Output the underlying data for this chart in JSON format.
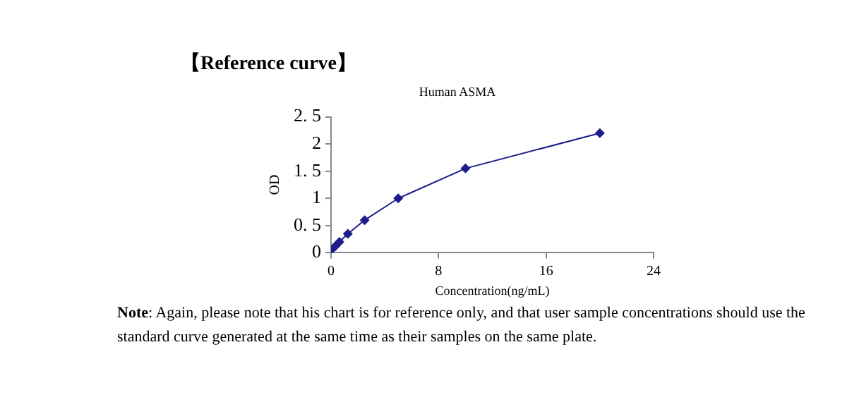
{
  "chart_data": {
    "type": "line",
    "title": "【Reference curve】",
    "subtitle": "Human ASMA",
    "xlabel": "Concentration(ng/mL)",
    "ylabel": "OD",
    "x": [
      0,
      0.312,
      0.625,
      1.25,
      2.5,
      5,
      10,
      20
    ],
    "series": [
      {
        "color": "#1c1c8a",
        "values": [
          0.05,
          0.12,
          0.2,
          0.35,
          0.6,
          1.0,
          1.55,
          2.2
        ]
      }
    ],
    "xlim": [
      0,
      24
    ],
    "xticks": [
      0,
      8,
      16,
      24
    ],
    "ylim": [
      0,
      2.5
    ],
    "yticks": [
      0,
      {
        "value": 0.5,
        "label": "0. 5"
      },
      1,
      {
        "value": 1.5,
        "label": "1. 5"
      },
      2,
      {
        "value": 2.5,
        "label": "2. 5"
      }
    ],
    "grid": false,
    "legend": false,
    "marker": "diamond",
    "line_style": "solid",
    "annotations": [
      "Note: Again, please note that his chart is for reference only, and that user sample concentrations should use the standard curve generated at the same time as their samples on the same plate."
    ]
  }
}
